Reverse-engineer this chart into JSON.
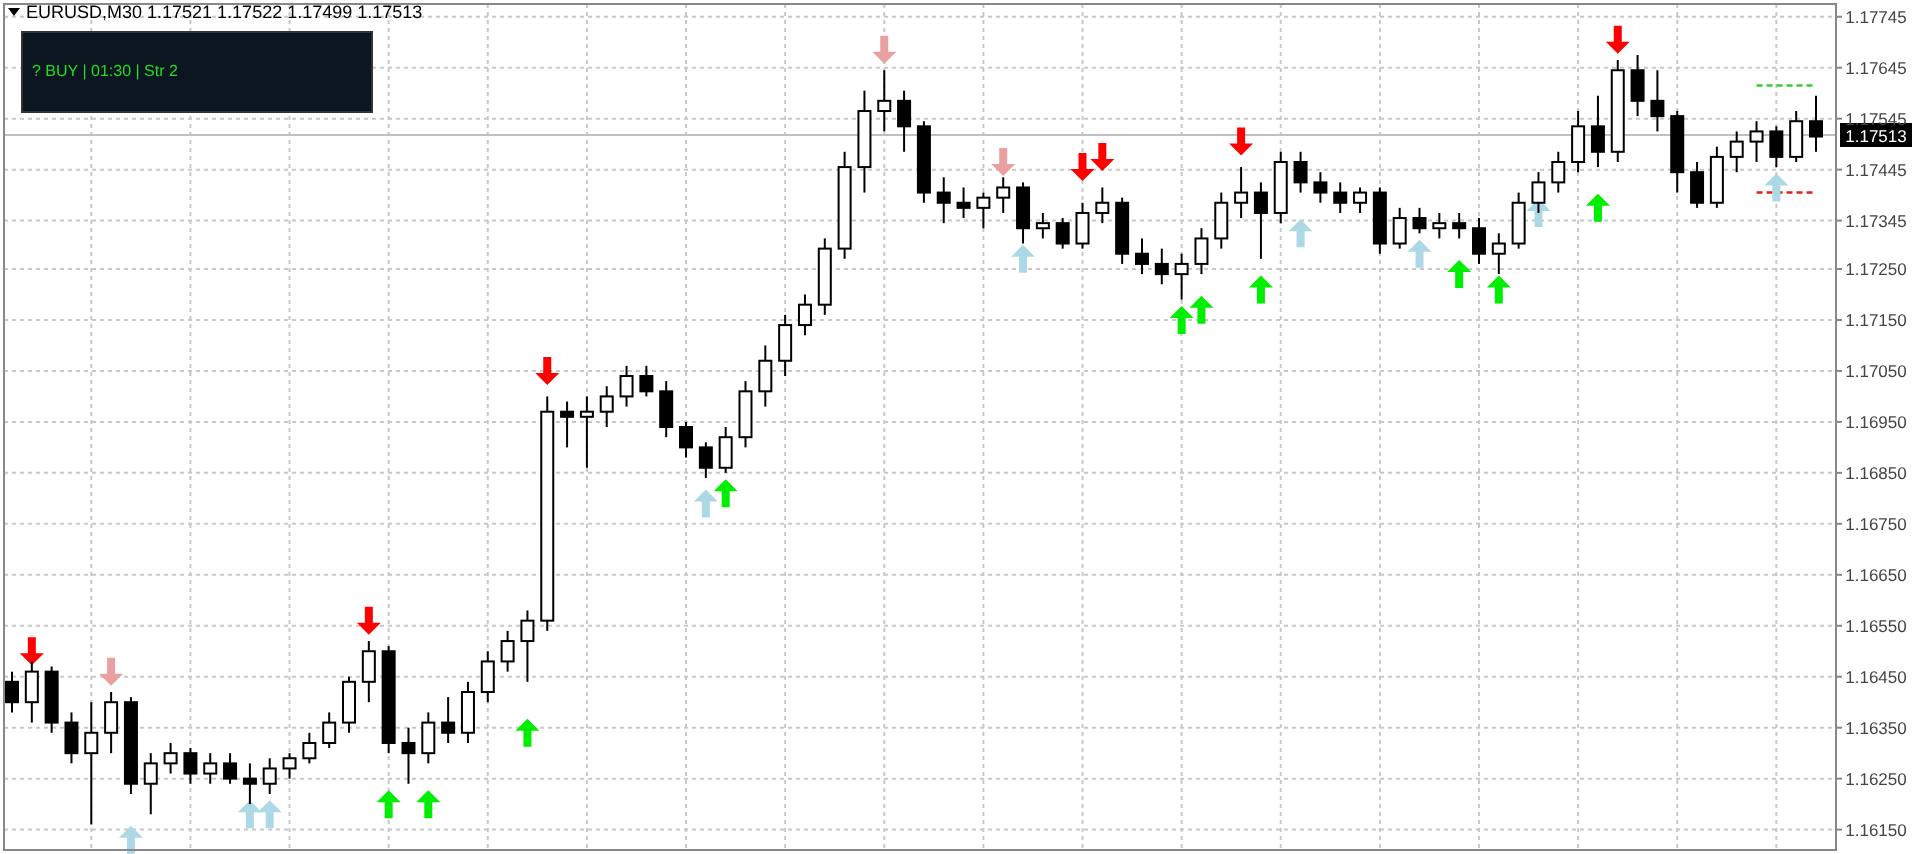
{
  "chart_data": {
    "type": "candlestick",
    "title": "EURUSD,M30  1.17521 1.17522 1.17499 1.17513",
    "annotations": [
      "? BUY | 01:30 | Str 2"
    ],
    "categories": [
      null,
      null,
      null,
      null,
      null,
      null,
      null,
      null,
      null,
      null,
      null,
      null,
      null,
      null,
      null,
      null,
      null,
      null,
      null,
      null,
      null,
      null,
      null,
      null,
      null,
      null,
      null,
      null,
      null,
      null,
      null,
      null,
      null,
      null,
      null,
      null,
      null,
      null,
      null,
      null,
      null,
      null,
      null,
      null,
      null,
      null,
      null,
      null,
      null,
      null,
      null,
      null,
      null,
      null,
      null,
      null,
      null,
      null,
      null,
      null,
      null,
      null,
      null,
      null,
      null,
      null,
      null,
      null,
      null,
      null,
      null,
      null,
      null,
      null,
      null,
      null,
      null,
      null,
      null,
      null,
      null,
      null,
      null,
      null,
      null,
      null,
      null,
      null,
      null,
      null,
      null,
      null
    ],
    "ohlc": [
      [
        1.1644,
        1.1646,
        1.1638,
        1.164
      ],
      [
        1.164,
        1.1648,
        1.1636,
        1.1646
      ],
      [
        1.1646,
        1.1647,
        1.1634,
        1.1636
      ],
      [
        1.1636,
        1.1638,
        1.1628,
        1.163
      ],
      [
        1.163,
        1.164,
        1.1616,
        1.1634
      ],
      [
        1.1634,
        1.1642,
        1.163,
        1.164
      ],
      [
        1.164,
        1.1641,
        1.1622,
        1.1624
      ],
      [
        1.1624,
        1.163,
        1.1618,
        1.1628
      ],
      [
        1.1628,
        1.1632,
        1.1626,
        1.163
      ],
      [
        1.163,
        1.1631,
        1.1624,
        1.1626
      ],
      [
        1.1626,
        1.163,
        1.1624,
        1.1628
      ],
      [
        1.1628,
        1.163,
        1.1624,
        1.1625
      ],
      [
        1.1625,
        1.1628,
        1.162,
        1.1624
      ],
      [
        1.1624,
        1.1629,
        1.1622,
        1.1627
      ],
      [
        1.1627,
        1.163,
        1.1625,
        1.1629
      ],
      [
        1.1629,
        1.1634,
        1.1628,
        1.1632
      ],
      [
        1.1632,
        1.1638,
        1.1631,
        1.1636
      ],
      [
        1.1636,
        1.1645,
        1.1634,
        1.1644
      ],
      [
        1.1644,
        1.1652,
        1.164,
        1.165
      ],
      [
        1.165,
        1.1651,
        1.163,
        1.1632
      ],
      [
        1.1632,
        1.1635,
        1.1624,
        1.163
      ],
      [
        1.163,
        1.1638,
        1.1628,
        1.1636
      ],
      [
        1.1636,
        1.1641,
        1.1632,
        1.1634
      ],
      [
        1.1634,
        1.1644,
        1.1632,
        1.1642
      ],
      [
        1.1642,
        1.165,
        1.164,
        1.1648
      ],
      [
        1.1648,
        1.1654,
        1.1646,
        1.1652
      ],
      [
        1.1652,
        1.1658,
        1.1644,
        1.1656
      ],
      [
        1.1656,
        1.17,
        1.1654,
        1.1697
      ],
      [
        1.1697,
        1.1699,
        1.169,
        1.1696
      ],
      [
        1.1696,
        1.17,
        1.1686,
        1.1697
      ],
      [
        1.1697,
        1.1702,
        1.1694,
        1.17
      ],
      [
        1.17,
        1.1706,
        1.1698,
        1.1704
      ],
      [
        1.1704,
        1.1706,
        1.17,
        1.1701
      ],
      [
        1.1701,
        1.1703,
        1.1692,
        1.1694
      ],
      [
        1.1694,
        1.1695,
        1.1688,
        1.169
      ],
      [
        1.169,
        1.1691,
        1.1684,
        1.1686
      ],
      [
        1.1686,
        1.1694,
        1.1685,
        1.1692
      ],
      [
        1.1692,
        1.1703,
        1.169,
        1.1701
      ],
      [
        1.1701,
        1.171,
        1.1698,
        1.1707
      ],
      [
        1.1707,
        1.1716,
        1.1704,
        1.1714
      ],
      [
        1.1714,
        1.172,
        1.1712,
        1.1718
      ],
      [
        1.1718,
        1.1731,
        1.1716,
        1.1729
      ],
      [
        1.1729,
        1.1748,
        1.1727,
        1.1745
      ],
      [
        1.1745,
        1.176,
        1.174,
        1.1756
      ],
      [
        1.1756,
        1.1764,
        1.1752,
        1.1758
      ],
      [
        1.1758,
        1.176,
        1.1748,
        1.1753
      ],
      [
        1.1753,
        1.1754,
        1.1738,
        1.174
      ],
      [
        1.174,
        1.1743,
        1.1734,
        1.1738
      ],
      [
        1.1738,
        1.1741,
        1.1735,
        1.1737
      ],
      [
        1.1737,
        1.174,
        1.1733,
        1.1739
      ],
      [
        1.1739,
        1.1743,
        1.1736,
        1.1741
      ],
      [
        1.1741,
        1.1742,
        1.173,
        1.1733
      ],
      [
        1.1733,
        1.1736,
        1.1731,
        1.1734
      ],
      [
        1.1734,
        1.1735,
        1.1729,
        1.173
      ],
      [
        1.173,
        1.1738,
        1.1729,
        1.1736
      ],
      [
        1.1736,
        1.1741,
        1.1734,
        1.1738
      ],
      [
        1.1738,
        1.1739,
        1.1726,
        1.1728
      ],
      [
        1.1728,
        1.1731,
        1.1724,
        1.1726
      ],
      [
        1.1726,
        1.1729,
        1.1722,
        1.1724
      ],
      [
        1.1724,
        1.1728,
        1.1719,
        1.1726
      ],
      [
        1.1726,
        1.1733,
        1.1724,
        1.1731
      ],
      [
        1.1731,
        1.174,
        1.1729,
        1.1738
      ],
      [
        1.1738,
        1.1745,
        1.1735,
        1.174
      ],
      [
        1.174,
        1.1742,
        1.1727,
        1.1736
      ],
      [
        1.1736,
        1.1748,
        1.1734,
        1.1746
      ],
      [
        1.1746,
        1.1748,
        1.174,
        1.1742
      ],
      [
        1.1742,
        1.1744,
        1.1738,
        1.174
      ],
      [
        1.174,
        1.1742,
        1.1736,
        1.1738
      ],
      [
        1.1738,
        1.1741,
        1.1736,
        1.174
      ],
      [
        1.174,
        1.1741,
        1.1728,
        1.173
      ],
      [
        1.173,
        1.1737,
        1.1729,
        1.1735
      ],
      [
        1.1735,
        1.1737,
        1.1732,
        1.1733
      ],
      [
        1.1733,
        1.1736,
        1.1731,
        1.1734
      ],
      [
        1.1734,
        1.1736,
        1.1731,
        1.1733
      ],
      [
        1.1733,
        1.1735,
        1.1726,
        1.1728
      ],
      [
        1.1728,
        1.1732,
        1.1724,
        1.173
      ],
      [
        1.173,
        1.174,
        1.1729,
        1.1738
      ],
      [
        1.1738,
        1.1744,
        1.1736,
        1.1742
      ],
      [
        1.1742,
        1.1748,
        1.174,
        1.1746
      ],
      [
        1.1746,
        1.1756,
        1.1744,
        1.1753
      ],
      [
        1.1753,
        1.1759,
        1.1745,
        1.1748
      ],
      [
        1.1748,
        1.1766,
        1.1746,
        1.1764
      ],
      [
        1.1764,
        1.1767,
        1.1755,
        1.1758
      ],
      [
        1.1758,
        1.1764,
        1.1752,
        1.1755
      ],
      [
        1.1755,
        1.1756,
        1.174,
        1.1744
      ],
      [
        1.1744,
        1.1746,
        1.1737,
        1.1738
      ],
      [
        1.1738,
        1.1749,
        1.1737,
        1.1747
      ],
      [
        1.1747,
        1.1752,
        1.1744,
        1.175
      ],
      [
        1.175,
        1.1754,
        1.1746,
        1.1752
      ],
      [
        1.1752,
        1.1753,
        1.1745,
        1.1747
      ],
      [
        1.1747,
        1.1756,
        1.1746,
        1.1754
      ],
      [
        1.1754,
        1.1759,
        1.1748,
        1.1751
      ]
    ],
    "series": [
      {
        "type": "scatter",
        "color": "#ff0000",
        "marker": "triangle",
        "values": [
          null,
          1.165,
          null,
          null,
          null,
          null,
          null,
          null,
          null,
          null,
          null,
          null,
          null,
          null,
          null,
          null,
          null,
          null,
          1.1656,
          null,
          null,
          null,
          null,
          null,
          null,
          null,
          null,
          1.1705,
          null,
          null,
          null,
          null,
          null,
          null,
          null,
          null,
          null,
          null,
          null,
          null,
          null,
          null,
          null,
          null,
          null,
          null,
          null,
          null,
          null,
          null,
          null,
          null,
          null,
          null,
          1.1745,
          1.1747,
          null,
          null,
          null,
          null,
          null,
          null,
          1.175,
          null,
          null,
          null,
          null,
          null,
          null,
          null,
          null,
          null,
          null,
          null,
          null,
          null,
          null,
          null,
          null,
          null,
          null,
          1.177,
          null,
          null,
          null,
          null,
          null,
          null,
          null,
          null,
          null,
          null
        ]
      },
      {
        "type": "scatter",
        "color": "#e8a0a0",
        "marker": "triangle",
        "values": [
          null,
          null,
          null,
          null,
          null,
          1.1646,
          null,
          null,
          null,
          null,
          null,
          null,
          null,
          null,
          null,
          null,
          null,
          null,
          null,
          null,
          null,
          null,
          null,
          null,
          null,
          null,
          null,
          null,
          null,
          null,
          null,
          null,
          null,
          null,
          null,
          null,
          null,
          null,
          null,
          null,
          null,
          null,
          null,
          null,
          1.1768,
          null,
          null,
          null,
          null,
          null,
          1.1746,
          null,
          null,
          null,
          null,
          null,
          null,
          null,
          null,
          null,
          null,
          null,
          null,
          null,
          null,
          null,
          null,
          null,
          null,
          null,
          null,
          null,
          null,
          null,
          null,
          null,
          null,
          null,
          null,
          null,
          null,
          null,
          null,
          null,
          null,
          null,
          null,
          null,
          null,
          null,
          null,
          null
        ]
      },
      {
        "type": "scatter",
        "color": "#00ee00",
        "marker": "triangle",
        "values": [
          null,
          null,
          null,
          null,
          null,
          null,
          null,
          null,
          null,
          null,
          null,
          null,
          null,
          null,
          null,
          null,
          null,
          null,
          null,
          1.162,
          null,
          1.162,
          null,
          null,
          null,
          null,
          1.1634,
          null,
          null,
          null,
          null,
          null,
          null,
          null,
          null,
          null,
          1.1681,
          null,
          null,
          null,
          null,
          null,
          null,
          null,
          null,
          null,
          null,
          null,
          null,
          null,
          null,
          null,
          null,
          null,
          null,
          null,
          null,
          null,
          null,
          1.1715,
          1.1717,
          null,
          null,
          1.1721,
          null,
          null,
          null,
          null,
          null,
          null,
          null,
          null,
          null,
          1.1724,
          null,
          1.1721,
          null,
          null,
          null,
          null,
          1.1737,
          null,
          null,
          null,
          null,
          null,
          null,
          null,
          null,
          null,
          null,
          null
        ]
      },
      {
        "type": "line",
        "color": "#33cc33",
        "line_style": "dashed",
        "values": [
          null,
          null,
          null,
          null,
          null,
          null,
          null,
          null,
          null,
          null,
          null,
          null,
          null,
          null,
          null,
          null,
          null,
          null,
          null,
          null,
          null,
          null,
          null,
          null,
          null,
          null,
          null,
          null,
          null,
          null,
          null,
          null,
          null,
          null,
          null,
          null,
          null,
          null,
          null,
          null,
          null,
          null,
          null,
          null,
          null,
          null,
          null,
          null,
          null,
          null,
          null,
          null,
          null,
          null,
          null,
          null,
          null,
          null,
          null,
          null,
          null,
          null,
          null,
          null,
          null,
          null,
          null,
          null,
          null,
          null,
          null,
          null,
          null,
          null,
          null,
          null,
          null,
          null,
          null,
          null,
          null,
          null,
          null,
          null,
          null,
          null,
          null,
          null,
          1.1761,
          1.1761,
          1.1761,
          1.1761
        ]
      },
      {
        "type": "line",
        "color": "#dd2222",
        "line_style": "dashed",
        "values": [
          null,
          null,
          null,
          null,
          null,
          null,
          null,
          null,
          null,
          null,
          null,
          null,
          null,
          null,
          null,
          null,
          null,
          null,
          null,
          null,
          null,
          null,
          null,
          null,
          null,
          null,
          null,
          null,
          null,
          null,
          null,
          null,
          null,
          null,
          null,
          null,
          null,
          null,
          null,
          null,
          null,
          null,
          null,
          null,
          null,
          null,
          null,
          null,
          null,
          null,
          null,
          null,
          null,
          null,
          null,
          null,
          null,
          null,
          null,
          null,
          null,
          null,
          null,
          null,
          null,
          null,
          null,
          null,
          null,
          null,
          null,
          null,
          null,
          null,
          null,
          null,
          null,
          null,
          null,
          null,
          null,
          null,
          null,
          null,
          null,
          null,
          null,
          null,
          1.174,
          1.174,
          1.174,
          1.174
        ]
      },
      {
        "type": "scatter",
        "color": "#add8e6",
        "marker": "triangle",
        "values": [
          null,
          null,
          null,
          null,
          null,
          null,
          1.1613,
          null,
          null,
          null,
          null,
          null,
          1.1618,
          1.1618,
          null,
          null,
          null,
          null,
          null,
          null,
          null,
          null,
          null,
          null,
          null,
          null,
          null,
          null,
          null,
          null,
          null,
          null,
          null,
          null,
          null,
          1.1679,
          null,
          null,
          null,
          null,
          null,
          null,
          null,
          null,
          null,
          null,
          null,
          null,
          null,
          null,
          null,
          1.1727,
          null,
          null,
          null,
          null,
          null,
          null,
          null,
          null,
          null,
          null,
          null,
          null,
          null,
          1.1732,
          null,
          null,
          null,
          null,
          null,
          1.1728,
          null,
          null,
          null,
          null,
          null,
          1.1736,
          null,
          null,
          null,
          null,
          null,
          null,
          null,
          null,
          null,
          null,
          null,
          1.1741,
          null,
          null
        ]
      }
    ],
    "ylim": [
      1.1611,
      1.1777
    ],
    "yticks": [
      {
        "value": 1.1615,
        "label": "1.16150"
      },
      {
        "value": 1.1625,
        "label": "1.16250"
      },
      {
        "value": 1.1635,
        "label": "1.16350"
      },
      {
        "value": 1.1645,
        "label": "1.16450"
      },
      {
        "value": 1.1655,
        "label": "1.16550"
      },
      {
        "value": 1.1665,
        "label": "1.16650"
      },
      {
        "value": 1.1675,
        "label": "1.16750"
      },
      {
        "value": 1.1685,
        "label": "1.16850"
      },
      {
        "value": 1.1695,
        "label": "1.16950"
      },
      {
        "value": 1.1705,
        "label": "1.17050"
      },
      {
        "value": 1.1715,
        "label": "1.17150"
      },
      {
        "value": 1.1725,
        "label": "1.17250"
      },
      1.17345,
      1.17445,
      1.17545,
      1.17645,
      1.17745
    ],
    "ref_lines": [
      {
        "axis": "y",
        "value": 1.17513,
        "label": "1.17513",
        "color": "#c0c0c0",
        "line_style": "solid"
      }
    ],
    "grid": true
  }
}
